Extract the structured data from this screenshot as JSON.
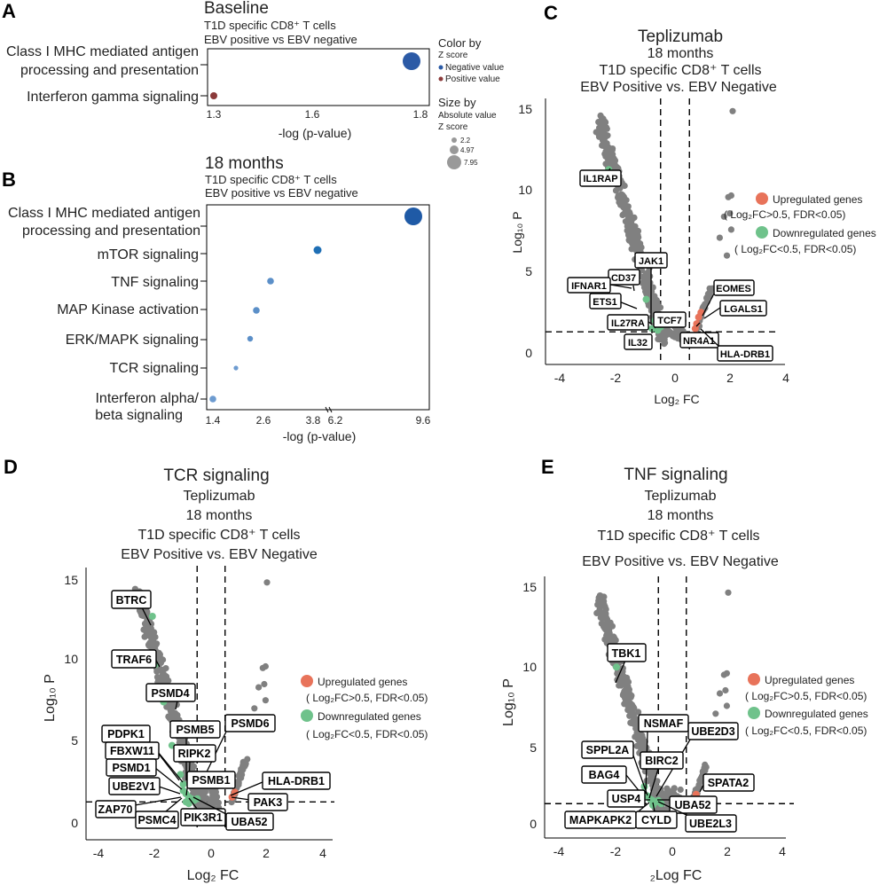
{
  "colors": {
    "negative": "#2b5aa6",
    "positive": "#8b3a3a",
    "grey": "#808080",
    "up": "#e8735a",
    "down": "#6fc28b",
    "mid_blue": "#5b8fc8"
  },
  "chart_data": [
    {
      "panel": "A",
      "type": "scatter",
      "title": "Baseline",
      "subtitle": [
        "T1D specific CD8⁺ T cells",
        "EBV positive vs EBV negative"
      ],
      "xlabel": "-log (p-value)",
      "xlim": [
        1.28,
        1.8
      ],
      "ticks": [
        {
          "value": 1.3,
          "label": "1.3"
        },
        {
          "value": 1.6,
          "label": "1.6"
        },
        {
          "value": 1.8,
          "label": "1.8"
        }
      ],
      "points": [
        {
          "label": "Class I MHC mediated antigen processing and presentation",
          "x": 1.79,
          "zsign": "negative",
          "size": 7.95
        },
        {
          "label": "Interferon gamma signaling",
          "x": 1.31,
          "zsign": "positive",
          "size": 2.2
        }
      ],
      "legend": {
        "color_title": [
          "Color by",
          "Z score"
        ],
        "neg": "Negative value",
        "pos": "Positive value",
        "size_title": [
          "Size by",
          "Absolute value",
          "Z score"
        ],
        "sizes": [
          "2.2",
          "4.97",
          "7.95"
        ]
      }
    },
    {
      "panel": "B",
      "type": "scatter",
      "title": "18 months",
      "subtitle": [
        "T1D specific CD8⁺ T cells",
        "EBV positive vs EBV negative"
      ],
      "xlabel": "-log (p-value)",
      "ticks": [
        {
          "value": 1.4,
          "label": "1.4"
        },
        {
          "value": 2.6,
          "label": "2.6"
        },
        {
          "value": 3.8,
          "label": "3.8"
        },
        {
          "value": 6.2,
          "label": "6.2"
        },
        {
          "value": 9.6,
          "label": "9.6"
        }
      ],
      "points": [
        {
          "label": "Class I MHC mediated antigen processing and presentation",
          "x": 9.5,
          "size": 7.95
        },
        {
          "label": "mTOR signaling",
          "x": 3.9,
          "size": 4.0
        },
        {
          "label": "TNF signaling",
          "x": 2.9,
          "size": 3.2
        },
        {
          "label": "MAP Kinase activation",
          "x": 2.7,
          "size": 3.2
        },
        {
          "label": "ERK/MAPK signaling",
          "x": 2.5,
          "size": 2.8
        },
        {
          "label": "TCR signaling",
          "x": 2.2,
          "size": 2.4
        },
        {
          "label": "Interferon alpha/ beta signaling",
          "x": 1.45,
          "size": 3.0
        }
      ]
    },
    {
      "panel": "C",
      "type": "scatter",
      "title": [
        "Teplizumab",
        "18 months",
        "T1D specific CD8⁺ T cells",
        "EBV Positive vs. EBV Negative"
      ],
      "xlabel": "Log₂ FC",
      "ylabel": "Log₁₀ P",
      "xlim": [
        -4.5,
        4
      ],
      "ylim": [
        -0.5,
        15.5
      ],
      "xticks": [
        "-4",
        "-2",
        "0",
        "2",
        "4"
      ],
      "yticks": [
        "0",
        "5",
        "10",
        "15"
      ],
      "genes": [
        "IL1RAP",
        "JAK1",
        "CD37",
        "IFNAR1",
        "ETS1",
        "IL27RA",
        "TCF7",
        "IL32",
        "EOMES",
        "LGALS1",
        "NR4A1",
        "HLA-DRB1"
      ],
      "legend": {
        "up": "Upregulated genes",
        "up_cond": "( Log₂FC>0.5,  FDR<0.05)",
        "down": "Downregulated genes",
        "down_cond": "( Log₂FC<0.5, FDR<0.05)"
      }
    },
    {
      "panel": "D",
      "type": "scatter",
      "title": [
        "TCR signaling",
        "Teplizumab",
        "18 months",
        "T1D specific CD8⁺ T cells",
        "EBV Positive vs. EBV Negative"
      ],
      "xlabel": "Log₂ FC",
      "ylabel": "Log₁₀ P",
      "xticks": [
        "-4",
        "-2",
        "0",
        "2",
        "4"
      ],
      "yticks": [
        "0",
        "5",
        "10",
        "15"
      ],
      "genes": [
        "BTRC",
        "TRAF6",
        "PSMD4",
        "PDPK1",
        "PSMB5",
        "PSMD6",
        "FBXW11",
        "RIPK2",
        "PSMD1",
        "UBE2V1",
        "PSMB1",
        "HLA-DRB1",
        "ZAP70",
        "PAK3",
        "PSMC4",
        "PIK3R1",
        "UBA52"
      ],
      "legend": {
        "up": "Upregulated genes",
        "up_cond": "( Log₂FC>0.5, FDR<0.05)",
        "down": "Downregulated genes",
        "down_cond": "( Log₂FC<0.5, FDR<0.05)"
      }
    },
    {
      "panel": "E",
      "type": "scatter",
      "title": [
        "TNF signaling",
        "Teplizumab",
        "18 months",
        "T1D specific CD8⁺ T cells",
        "EBV Positive vs. EBV Negative"
      ],
      "xlabel": "₂Log  FC",
      "ylabel": "Log₁₀ P",
      "xticks": [
        "-4",
        "-2",
        "0",
        "2",
        "4"
      ],
      "yticks": [
        "0",
        "5",
        "10",
        "15"
      ],
      "genes": [
        "TBK1",
        "NSMAF",
        "UBE2D3",
        "SPPL2A",
        "BIRC2",
        "BAG4",
        "SPATA2",
        "USP4",
        "UBA52",
        "MAPKAPK2",
        "CYLD",
        "UBE2L3"
      ],
      "legend": {
        "up": "Upregulated genes",
        "up_cond": "( Log₂FC>0.5, FDR<0.05)",
        "down": "Downregulated genes",
        "down_cond": "( Log₂FC<0.5, FDR<0.05)"
      }
    }
  ]
}
